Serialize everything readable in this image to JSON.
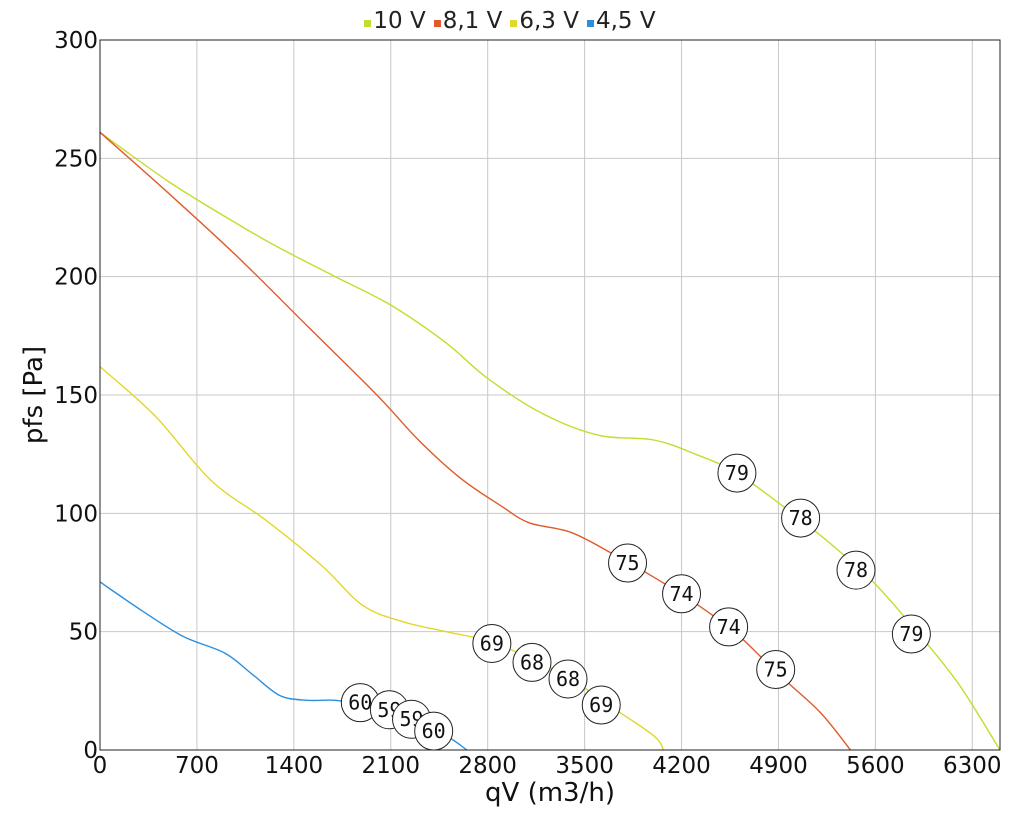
{
  "chart_data": {
    "type": "line",
    "title": "",
    "xlabel": "qV (m3/h)",
    "ylabel": "pfs [Pa]",
    "xlim": [
      0,
      6500
    ],
    "ylim": [
      0,
      300
    ],
    "xticks": [
      0,
      700,
      1400,
      2100,
      2800,
      3500,
      4200,
      4900,
      5600,
      6300
    ],
    "yticks": [
      0,
      50,
      100,
      150,
      200,
      250,
      300
    ],
    "grid": true,
    "legend_position": "top-center",
    "series": [
      {
        "name": "10 V",
        "color": "#c5dc2c",
        "points": [
          [
            0,
            261
          ],
          [
            500,
            240
          ],
          [
            1000,
            222
          ],
          [
            1300,
            212
          ],
          [
            1700,
            200
          ],
          [
            2100,
            188
          ],
          [
            2500,
            172
          ],
          [
            2800,
            157
          ],
          [
            3200,
            142
          ],
          [
            3600,
            133
          ],
          [
            4000,
            131
          ],
          [
            4300,
            125
          ],
          [
            4600,
            117
          ],
          [
            5000,
            100
          ],
          [
            5300,
            86
          ],
          [
            5600,
            70
          ],
          [
            5900,
            50
          ],
          [
            6200,
            28
          ],
          [
            6500,
            0
          ]
        ],
        "markers": [
          {
            "x": 4600,
            "y": 117,
            "label": "79"
          },
          {
            "x": 5060,
            "y": 98,
            "label": "78"
          },
          {
            "x": 5460,
            "y": 76,
            "label": "78"
          },
          {
            "x": 5860,
            "y": 49,
            "label": "79"
          }
        ]
      },
      {
        "name": "8,1 V",
        "color": "#e05a2b",
        "points": [
          [
            0,
            261
          ],
          [
            500,
            235
          ],
          [
            1000,
            208
          ],
          [
            1500,
            179
          ],
          [
            2000,
            150
          ],
          [
            2300,
            131
          ],
          [
            2600,
            115
          ],
          [
            2900,
            103
          ],
          [
            3100,
            96
          ],
          [
            3400,
            92
          ],
          [
            3700,
            83
          ],
          [
            4000,
            73
          ],
          [
            4300,
            62
          ],
          [
            4600,
            49
          ],
          [
            4900,
            32
          ],
          [
            5200,
            16
          ],
          [
            5420,
            0
          ]
        ],
        "markers": [
          {
            "x": 3810,
            "y": 79,
            "label": "75"
          },
          {
            "x": 4200,
            "y": 66,
            "label": "74"
          },
          {
            "x": 4540,
            "y": 52,
            "label": "74"
          },
          {
            "x": 4880,
            "y": 34,
            "label": "75"
          }
        ]
      },
      {
        "name": "6,3 V",
        "color": "#e0d82a",
        "points": [
          [
            0,
            162
          ],
          [
            400,
            141
          ],
          [
            800,
            114
          ],
          [
            1200,
            97
          ],
          [
            1600,
            78
          ],
          [
            1900,
            61
          ],
          [
            2200,
            54
          ],
          [
            2500,
            50
          ],
          [
            2800,
            46
          ],
          [
            3100,
            39
          ],
          [
            3400,
            30
          ],
          [
            3700,
            18
          ],
          [
            4000,
            6
          ],
          [
            4070,
            0
          ]
        ],
        "markers": [
          {
            "x": 2830,
            "y": 45,
            "label": "69"
          },
          {
            "x": 3120,
            "y": 37,
            "label": "68"
          },
          {
            "x": 3380,
            "y": 30,
            "label": "68"
          },
          {
            "x": 3620,
            "y": 19,
            "label": "69"
          }
        ]
      },
      {
        "name": "4,5 V",
        "color": "#2b8fde",
        "points": [
          [
            0,
            71
          ],
          [
            300,
            59
          ],
          [
            600,
            48
          ],
          [
            900,
            41
          ],
          [
            1100,
            32
          ],
          [
            1300,
            23
          ],
          [
            1500,
            21
          ],
          [
            1700,
            21
          ],
          [
            1900,
            19
          ],
          [
            2100,
            15
          ],
          [
            2300,
            11
          ],
          [
            2500,
            6
          ],
          [
            2650,
            0
          ]
        ],
        "markers": [
          {
            "x": 1880,
            "y": 20,
            "label": "60"
          },
          {
            "x": 2090,
            "y": 17,
            "label": "59"
          },
          {
            "x": 2250,
            "y": 13,
            "label": "59"
          },
          {
            "x": 2410,
            "y": 8,
            "label": "60"
          }
        ]
      }
    ]
  }
}
